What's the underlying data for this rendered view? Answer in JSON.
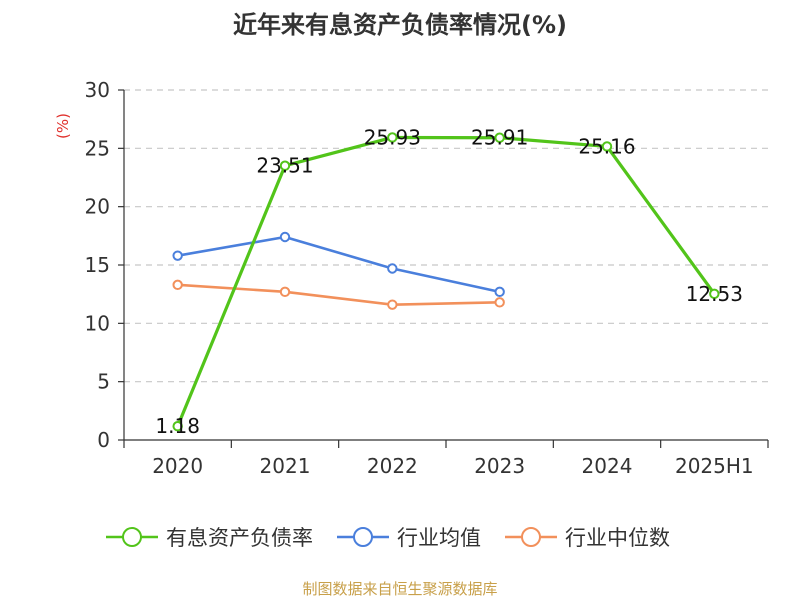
{
  "chart_data": {
    "type": "line",
    "title": "近年来有息资产负债率情况(%)",
    "ylabel": "(%)",
    "xlabel": "",
    "categories": [
      "2020",
      "2021",
      "2022",
      "2023",
      "2024",
      "2025H1"
    ],
    "ylim": [
      0,
      30
    ],
    "yticks": [
      0,
      5,
      10,
      15,
      20,
      25,
      30
    ],
    "grid": true,
    "legend_position": "bottom",
    "series": [
      {
        "name": "有息资产负债率",
        "color": "#52c41a",
        "values": [
          1.18,
          23.51,
          25.93,
          25.91,
          25.16,
          12.53
        ],
        "labels": [
          "1.18",
          "23.51",
          "25.93",
          "25.91",
          "25.16",
          "12.53"
        ]
      },
      {
        "name": "行业均值",
        "color": "#4a7fdc",
        "values": [
          15.8,
          17.4,
          14.7,
          12.7,
          null,
          null
        ]
      },
      {
        "name": "行业中位数",
        "color": "#f2905b",
        "values": [
          13.3,
          12.7,
          11.6,
          11.8,
          null,
          null
        ]
      }
    ],
    "source": "制图数据来自恒生聚源数据库"
  }
}
